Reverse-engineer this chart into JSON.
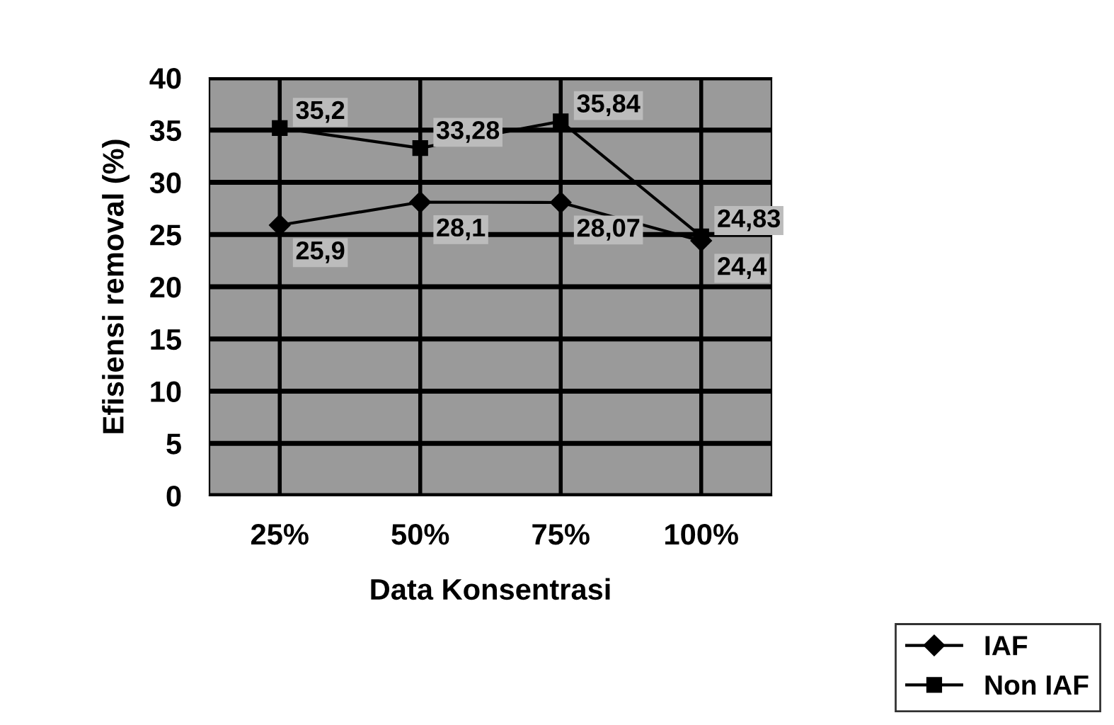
{
  "chart_data": {
    "type": "line",
    "xlabel": "Data Konsentrasi",
    "ylabel": "Efisiensi removal (%)",
    "categories": [
      "25%",
      "50%",
      "75%",
      "100%"
    ],
    "series": [
      {
        "name": "IAF",
        "color": "#000000",
        "marker": "diamond",
        "values": [
          25.9,
          28.1,
          28.07,
          24.4
        ],
        "value_labels": [
          "25,9",
          "28,1",
          "28,07",
          "24,4"
        ]
      },
      {
        "name": "Non IAF",
        "color": "#000000",
        "marker": "square",
        "values": [
          35.2,
          33.28,
          35.84,
          24.83
        ],
        "value_labels": [
          "35,2",
          "33,28",
          "35,84",
          "24,83"
        ]
      }
    ],
    "ylim": [
      0,
      40
    ],
    "yticks": [
      0,
      5,
      10,
      15,
      20,
      25,
      30,
      35,
      40
    ],
    "grid": true,
    "legend": "bottom right"
  }
}
